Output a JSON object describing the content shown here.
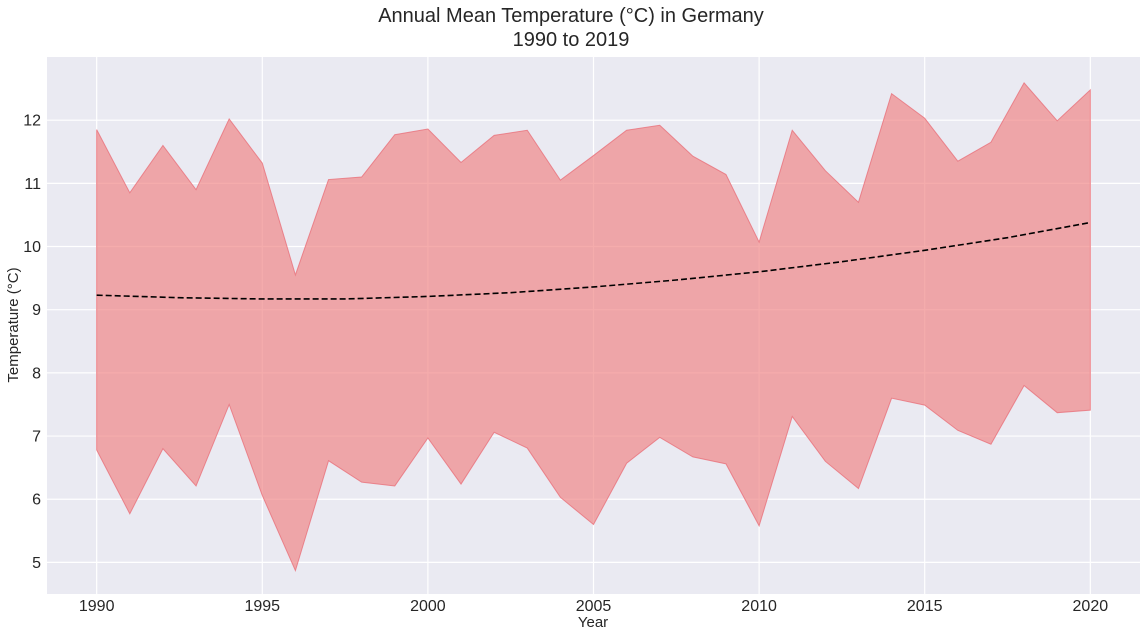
{
  "chart_data": {
    "type": "area",
    "title_line1": "Annual Mean Temperature (°C) in Germany",
    "title_line2": "1990 to 2019",
    "xlabel": "Year",
    "ylabel": "Temperature (°C)",
    "xlim": [
      1988.5,
      2021.5
    ],
    "ylim": [
      4.5,
      13.0
    ],
    "xticks": [
      1990,
      1995,
      2000,
      2005,
      2010,
      2015,
      2020
    ],
    "yticks": [
      5,
      6,
      7,
      8,
      9,
      10,
      11,
      12
    ],
    "grid": true,
    "years": [
      1990,
      1991,
      1992,
      1993,
      1994,
      1995,
      1996,
      1997,
      1998,
      1999,
      2000,
      2001,
      2002,
      2003,
      2004,
      2005,
      2006,
      2007,
      2008,
      2009,
      2010,
      2011,
      2012,
      2013,
      2014,
      2015,
      2016,
      2017,
      2018,
      2019,
      2020
    ],
    "series": [
      {
        "kind": "band_upper",
        "values": [
          11.85,
          10.85,
          11.6,
          10.9,
          12.02,
          11.32,
          9.55,
          11.06,
          11.1,
          11.77,
          11.86,
          11.33,
          11.76,
          11.84,
          11.05,
          11.44,
          11.84,
          11.92,
          11.43,
          11.14,
          10.07,
          11.84,
          11.2,
          10.7,
          12.42,
          12.03,
          11.35,
          11.65,
          12.59,
          11.99,
          12.48
        ]
      },
      {
        "kind": "band_lower",
        "values": [
          6.78,
          5.77,
          6.8,
          6.21,
          7.5,
          6.06,
          4.87,
          6.61,
          6.27,
          6.21,
          6.97,
          6.24,
          7.06,
          6.81,
          6.03,
          5.6,
          6.57,
          6.98,
          6.67,
          6.56,
          5.58,
          7.31,
          6.6,
          6.17,
          7.6,
          7.49,
          7.09,
          6.87,
          7.8,
          7.37,
          7.41
        ]
      },
      {
        "kind": "trend",
        "values": [
          9.23,
          9.19,
          9.17,
          9.17,
          9.21,
          9.27,
          9.36,
          9.47,
          9.6,
          9.76,
          9.94,
          10.14,
          10.38
        ]
      }
    ],
    "trend_years": [
      1990,
      1992.5,
      1995,
      1997.5,
      2000,
      2002.5,
      2005,
      2007.5,
      2010,
      2012.5,
      2015,
      2017.5,
      2020
    ],
    "colors": {
      "band_fill": "#f08080",
      "band_edge": "#e8707a",
      "trend": "#000000",
      "plot_bg": "#eaeaf2",
      "grid": "#ffffff",
      "text": "#262626"
    }
  }
}
